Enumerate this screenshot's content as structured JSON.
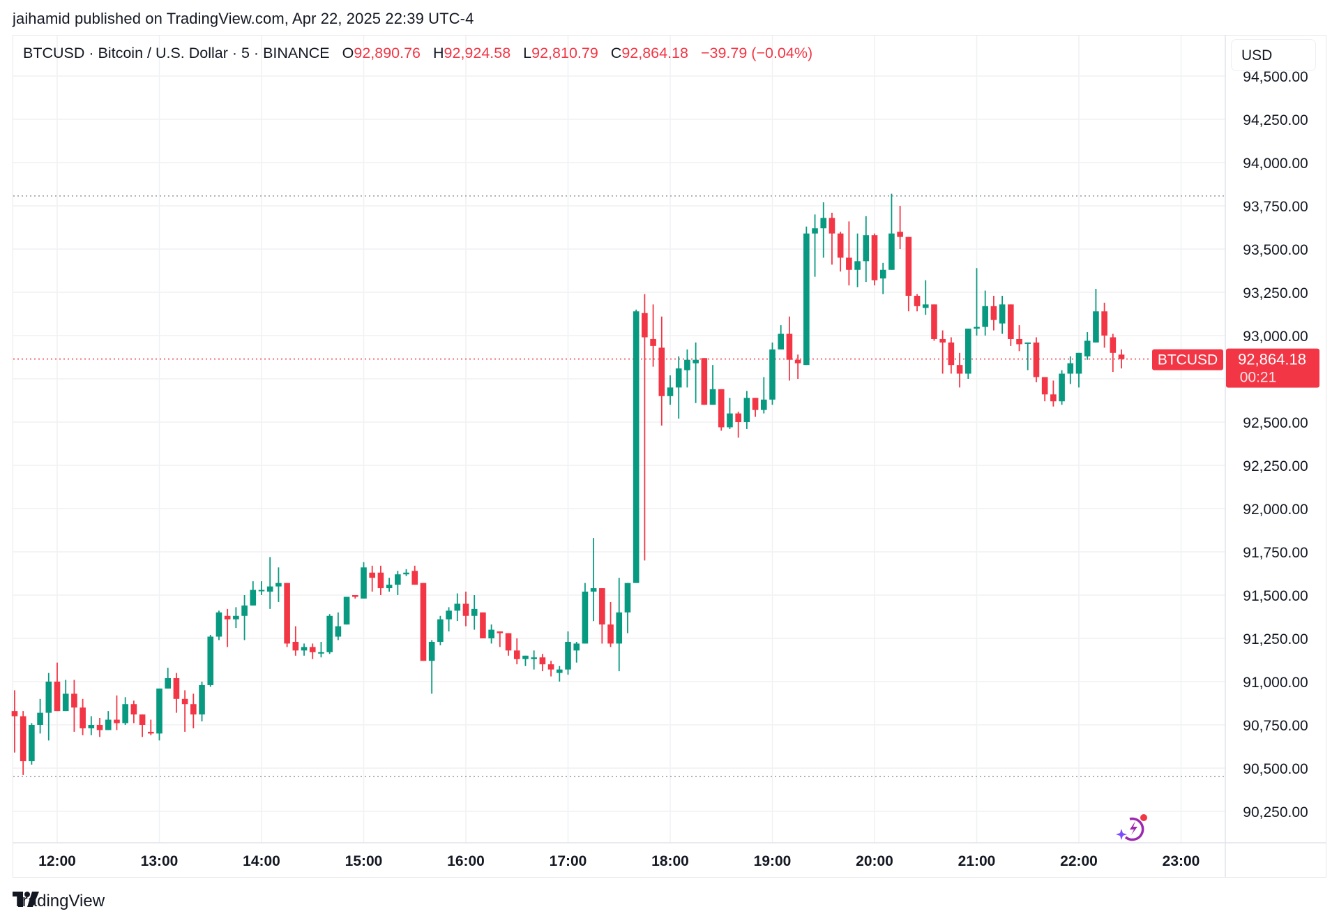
{
  "publisher_line": "jaihamid published on TradingView.com, Apr 22, 2025 22:39 UTC-4",
  "legend": {
    "symbol_info": "BTCUSD · Bitcoin / U.S. Dollar · 5 · BINANCE",
    "o_label": "O",
    "o_value": "92,890.76",
    "h_label": "H",
    "h_value": "92,924.58",
    "l_label": "L",
    "l_value": "92,810.79",
    "c_label": "C",
    "c_value": "92,864.18",
    "change": "−39.79 (−0.04%)"
  },
  "currency_button": "USD",
  "price_label": {
    "symbol": "BTCUSD",
    "price": "92,864.18",
    "countdown": "00:21"
  },
  "footer_brand": "TradingView",
  "colors": {
    "up": "#089981",
    "down": "#f23645",
    "grid": "#f0f1f3",
    "text": "#131722"
  },
  "chart_data": {
    "type": "candlestick",
    "title": "BTCUSD · Bitcoin / U.S. Dollar · 5 · BINANCE",
    "interval_minutes": 5,
    "first_candle_time": "11:35",
    "xlabel": "",
    "ylabel": "USD",
    "x_ticks": [
      "12:00",
      "13:00",
      "14:00",
      "15:00",
      "16:00",
      "17:00",
      "18:00",
      "19:00",
      "20:00",
      "21:00",
      "22:00",
      "23:00"
    ],
    "y_ticks": [
      "90,250.00",
      "90,500.00",
      "90,750.00",
      "91,000.00",
      "91,250.00",
      "91,500.00",
      "91,750.00",
      "92,000.00",
      "92,250.00",
      "92,500.00",
      "92,750.00",
      "93,000.00",
      "93,250.00",
      "93,500.00",
      "93,750.00",
      "94,000.00",
      "94,250.00",
      "94,500.00"
    ],
    "ylim": [
      90120,
      94560
    ],
    "grid": true,
    "high_line": 93807,
    "low_line": 90452,
    "last_price": 92864.18,
    "candles": [
      [
        90830,
        90950,
        90590,
        90800
      ],
      [
        90800,
        90830,
        90460,
        90540
      ],
      [
        90540,
        90760,
        90520,
        90750
      ],
      [
        90750,
        90900,
        90700,
        90820
      ],
      [
        90820,
        91050,
        90660,
        91000
      ],
      [
        91000,
        91110,
        90830,
        90830
      ],
      [
        90830,
        91010,
        90840,
        90930
      ],
      [
        90930,
        91010,
        90710,
        90850
      ],
      [
        90850,
        90900,
        90690,
        90730
      ],
      [
        90730,
        90800,
        90690,
        90750
      ],
      [
        90750,
        90790,
        90680,
        90720
      ],
      [
        90720,
        90830,
        90720,
        90780
      ],
      [
        90780,
        90920,
        90720,
        90760
      ],
      [
        90760,
        90910,
        90750,
        90870
      ],
      [
        90870,
        90890,
        90760,
        90810
      ],
      [
        90810,
        90790,
        90680,
        90750
      ],
      [
        90710,
        90780,
        90690,
        90700
      ],
      [
        90700,
        90950,
        90660,
        90960
      ],
      [
        90960,
        91080,
        90960,
        91020
      ],
      [
        91020,
        91050,
        90820,
        90900
      ],
      [
        90900,
        90950,
        90710,
        90870
      ],
      [
        90870,
        90930,
        90730,
        90810
      ],
      [
        90810,
        91000,
        90770,
        90980
      ],
      [
        90980,
        91270,
        90970,
        91260
      ],
      [
        91260,
        91410,
        91240,
        91400
      ],
      [
        91380,
        91420,
        91200,
        91360
      ],
      [
        91360,
        91430,
        91310,
        91380
      ],
      [
        91380,
        91500,
        91240,
        91440
      ],
      [
        91440,
        91580,
        91460,
        91530
      ],
      [
        91530,
        91580,
        91500,
        91530
      ],
      [
        91520,
        91720,
        91420,
        91550
      ],
      [
        91550,
        91660,
        91460,
        91570
      ],
      [
        91570,
        91570,
        91200,
        91220
      ],
      [
        91230,
        91320,
        91150,
        91180
      ],
      [
        91180,
        91220,
        91150,
        91200
      ],
      [
        91200,
        91220,
        91130,
        91170
      ],
      [
        91170,
        91230,
        91140,
        91170
      ],
      [
        91170,
        91390,
        91160,
        91380
      ],
      [
        91260,
        91400,
        91240,
        91320
      ],
      [
        91330,
        91490,
        91330,
        91490
      ],
      [
        91500,
        91500,
        91480,
        91490
      ],
      [
        91480,
        91690,
        91480,
        91660
      ],
      [
        91630,
        91670,
        91520,
        91600
      ],
      [
        91630,
        91670,
        91500,
        91540
      ],
      [
        91540,
        91600,
        91520,
        91560
      ],
      [
        91560,
        91640,
        91500,
        91620
      ],
      [
        91620,
        91650,
        91610,
        91630
      ],
      [
        91640,
        91670,
        91570,
        91560
      ],
      [
        91570,
        91570,
        91120,
        91120
      ],
      [
        91120,
        91240,
        90930,
        91230
      ],
      [
        91230,
        91380,
        91210,
        91360
      ],
      [
        91360,
        91430,
        91290,
        91410
      ],
      [
        91410,
        91510,
        91350,
        91450
      ],
      [
        91450,
        91520,
        91320,
        91380
      ],
      [
        91380,
        91500,
        91300,
        91420
      ],
      [
        91400,
        91400,
        91250,
        91250
      ],
      [
        91250,
        91330,
        91220,
        91300
      ],
      [
        91290,
        91290,
        91200,
        91280
      ],
      [
        91280,
        91260,
        91150,
        91180
      ],
      [
        91180,
        91250,
        91100,
        91130
      ],
      [
        91130,
        91130,
        91090,
        91150
      ],
      [
        91130,
        91180,
        91070,
        91140
      ],
      [
        91140,
        91160,
        91060,
        91100
      ],
      [
        91100,
        91120,
        91030,
        91070
      ],
      [
        91050,
        91090,
        91000,
        91070
      ],
      [
        91070,
        91290,
        91040,
        91230
      ],
      [
        91180,
        91230,
        91110,
        91220
      ],
      [
        91220,
        91570,
        91220,
        91520
      ],
      [
        91520,
        91830,
        91350,
        91540
      ],
      [
        91540,
        91540,
        91220,
        91330
      ],
      [
        91330,
        91460,
        91200,
        91220
      ],
      [
        91220,
        91600,
        91060,
        91400
      ],
      [
        91400,
        91570,
        91280,
        91570
      ],
      [
        91570,
        93150,
        91570,
        93140
      ],
      [
        93130,
        93240,
        91700,
        92990
      ],
      [
        92980,
        93180,
        92820,
        92940
      ],
      [
        92930,
        93110,
        92480,
        92650
      ],
      [
        92650,
        92770,
        92600,
        92700
      ],
      [
        92700,
        92880,
        92520,
        92810
      ],
      [
        92800,
        92920,
        92700,
        92860
      ],
      [
        92840,
        92960,
        92610,
        92860
      ],
      [
        92870,
        92860,
        92630,
        92600
      ],
      [
        92600,
        92830,
        92630,
        92690
      ],
      [
        92690,
        92660,
        92450,
        92470
      ],
      [
        92470,
        92640,
        92460,
        92550
      ],
      [
        92550,
        92560,
        92410,
        92500
      ],
      [
        92500,
        92680,
        92460,
        92640
      ],
      [
        92640,
        92640,
        92530,
        92570
      ],
      [
        92570,
        92760,
        92550,
        92630
      ],
      [
        92630,
        92960,
        92600,
        92920
      ],
      [
        92920,
        93060,
        92930,
        93010
      ],
      [
        93010,
        93110,
        92740,
        92860
      ],
      [
        92860,
        92890,
        92750,
        92840
      ],
      [
        92830,
        93630,
        92860,
        93590
      ],
      [
        93590,
        93700,
        93340,
        93620
      ],
      [
        93620,
        93770,
        93450,
        93680
      ],
      [
        93680,
        93710,
        93410,
        93590
      ],
      [
        93590,
        93600,
        93370,
        93450
      ],
      [
        93450,
        93660,
        93290,
        93380
      ],
      [
        93380,
        93590,
        93280,
        93430
      ],
      [
        93430,
        93690,
        93310,
        93580
      ],
      [
        93580,
        93590,
        93290,
        93320
      ],
      [
        93330,
        93420,
        93240,
        93380
      ],
      [
        93380,
        93820,
        93420,
        93590
      ],
      [
        93600,
        93750,
        93500,
        93570
      ],
      [
        93570,
        93570,
        93140,
        93230
      ],
      [
        93230,
        93240,
        93140,
        93170
      ],
      [
        93160,
        93320,
        93120,
        93180
      ],
      [
        93180,
        93180,
        92970,
        92980
      ],
      [
        92980,
        93030,
        92780,
        92960
      ],
      [
        92960,
        92990,
        92780,
        92830
      ],
      [
        92830,
        92900,
        92700,
        92780
      ],
      [
        92780,
        93020,
        92750,
        93040
      ],
      [
        93040,
        93390,
        93000,
        93050
      ],
      [
        93050,
        93260,
        93000,
        93170
      ],
      [
        93170,
        93230,
        93030,
        93090
      ],
      [
        93070,
        93230,
        93010,
        93180
      ],
      [
        93180,
        93150,
        92940,
        92980
      ],
      [
        92980,
        93060,
        92910,
        92950
      ],
      [
        92960,
        92960,
        92800,
        92960
      ],
      [
        92960,
        92990,
        92730,
        92760
      ],
      [
        92760,
        92740,
        92620,
        92660
      ],
      [
        92660,
        92740,
        92590,
        92620
      ],
      [
        92620,
        92800,
        92600,
        92780
      ],
      [
        92780,
        92880,
        92720,
        92840
      ],
      [
        92780,
        92860,
        92700,
        92900
      ],
      [
        92880,
        93020,
        92860,
        92970
      ],
      [
        92960,
        93270,
        92960,
        93140
      ],
      [
        93140,
        93190,
        92930,
        93000
      ],
      [
        92990,
        93010,
        92790,
        92900
      ],
      [
        92890,
        92920,
        92810,
        92864
      ]
    ]
  }
}
